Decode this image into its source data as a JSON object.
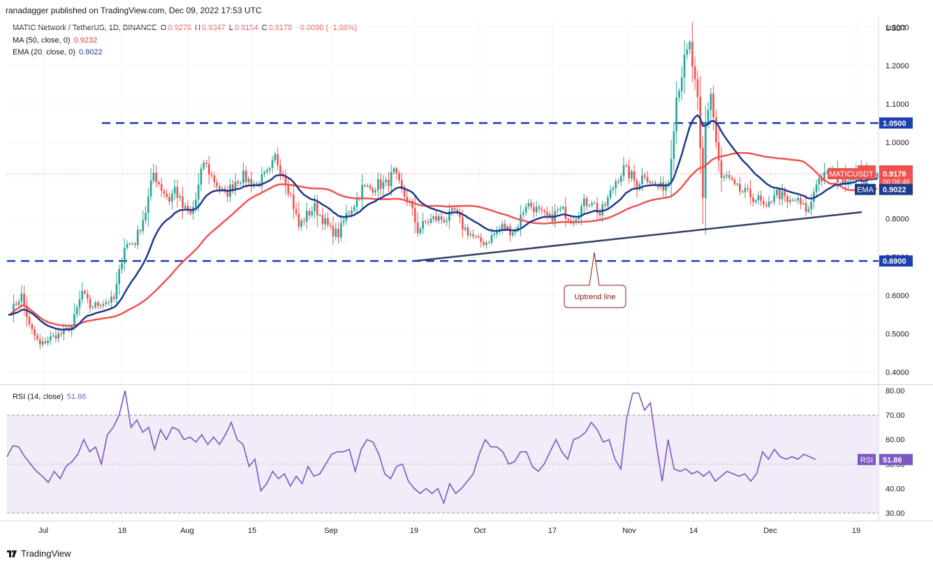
{
  "publisher_line": "ranadagger published on TradingView.com, Dec 09, 2022 17:53 UTC",
  "legend": {
    "symbol": "MATIC Network / TetherUS, 1D, BINANCE",
    "o_label": "O",
    "o": "0.9276",
    "h_label": "H",
    "h": "0.9347",
    "l_label": "L",
    "l": "0.9154",
    "c_label": "C",
    "c": "0.9178",
    "change": "−0.0098 (−1.06%)",
    "ma_label": "MA (50, close, 0)",
    "ma_value": "0.9232",
    "ema_label": "EMA (20, close, 0)",
    "ema_value": "0.9022",
    "rsi_label": "RSI (14, close)",
    "rsi_value": "51.86"
  },
  "footer": {
    "brand": "TradingView"
  },
  "colors": {
    "up": "#26a69a",
    "down": "#ef5350",
    "ma": "#ef5350",
    "ema": "#1e3a8a",
    "level": "#1e3fae",
    "trend": "#2f4066",
    "rsi": "#7e57c2",
    "rsi_band": "#ede7f6",
    "grid": "#f0f3fa",
    "annotation": "#8b1a1a"
  },
  "chart_data": [
    {
      "type": "candlestick",
      "title": "MATIC Network / TetherUS, 1D, BINANCE",
      "ylabel": "USDT",
      "ylim": [
        0.37,
        1.32
      ],
      "y_ticks": [
        "1.3000",
        "1.2000",
        "1.1000",
        "1.0000",
        "0.9000",
        "0.8000",
        "0.7000",
        "0.6000",
        "0.5000",
        "0.4000"
      ],
      "x_ticks": [
        "Jul",
        "18",
        "Aug",
        "15",
        "Sep",
        "19",
        "Oct",
        "17",
        "Nov",
        "14",
        "Dec",
        "19"
      ],
      "grid": true,
      "price_anchors": [
        [
          0,
          0.55
        ],
        [
          5,
          0.6
        ],
        [
          8,
          0.52
        ],
        [
          12,
          0.47
        ],
        [
          16,
          0.49
        ],
        [
          20,
          0.5
        ],
        [
          24,
          0.52
        ],
        [
          28,
          0.61
        ],
        [
          31,
          0.57
        ],
        [
          35,
          0.58
        ],
        [
          40,
          0.59
        ],
        [
          44,
          0.73
        ],
        [
          48,
          0.74
        ],
        [
          52,
          0.82
        ],
        [
          55,
          0.92
        ],
        [
          58,
          0.88
        ],
        [
          61,
          0.85
        ],
        [
          63,
          0.88
        ],
        [
          66,
          0.83
        ],
        [
          69,
          0.81
        ],
        [
          71,
          0.85
        ],
        [
          74,
          0.95
        ],
        [
          77,
          0.91
        ],
        [
          82,
          0.86
        ],
        [
          86,
          0.9
        ],
        [
          89,
          0.91
        ],
        [
          91,
          0.9
        ],
        [
          94,
          0.89
        ],
        [
          97,
          0.91
        ],
        [
          99,
          0.92
        ],
        [
          101,
          0.96
        ],
        [
          104,
          0.92
        ],
        [
          107,
          0.86
        ],
        [
          110,
          0.78
        ],
        [
          113,
          0.81
        ],
        [
          116,
          0.83
        ],
        [
          119,
          0.8
        ],
        [
          122,
          0.77
        ],
        [
          125,
          0.76
        ],
        [
          128,
          0.81
        ],
        [
          131,
          0.84
        ],
        [
          134,
          0.88
        ],
        [
          137,
          0.88
        ],
        [
          140,
          0.89
        ],
        [
          143,
          0.89
        ],
        [
          146,
          0.92
        ],
        [
          149,
          0.87
        ],
        [
          152,
          0.84
        ],
        [
          155,
          0.77
        ],
        [
          158,
          0.79
        ],
        [
          161,
          0.8
        ],
        [
          164,
          0.8
        ],
        [
          166,
          0.8
        ],
        [
          169,
          0.82
        ],
        [
          172,
          0.78
        ],
        [
          175,
          0.76
        ],
        [
          178,
          0.74
        ],
        [
          181,
          0.74
        ],
        [
          184,
          0.76
        ],
        [
          187,
          0.78
        ],
        [
          190,
          0.77
        ],
        [
          192,
          0.77
        ],
        [
          196,
          0.84
        ],
        [
          199,
          0.83
        ],
        [
          202,
          0.81
        ],
        [
          205,
          0.8
        ],
        [
          208,
          0.82
        ],
        [
          210,
          0.82
        ],
        [
          213,
          0.8
        ],
        [
          215,
          0.81
        ],
        [
          218,
          0.84
        ],
        [
          221,
          0.85
        ],
        [
          224,
          0.81
        ],
        [
          227,
          0.85
        ],
        [
          230,
          0.9
        ],
        [
          233,
          0.93
        ],
        [
          236,
          0.91
        ],
        [
          238,
          0.89
        ],
        [
          241,
          0.92
        ],
        [
          244,
          0.89
        ],
        [
          247,
          0.88
        ],
        [
          250,
          0.9
        ],
        [
          253,
          1.12
        ],
        [
          256,
          1.21
        ],
        [
          258,
          1.25
        ],
        [
          261,
          1.1
        ],
        [
          263,
          0.85
        ],
        [
          264,
          1.05
        ],
        [
          266,
          1.13
        ],
        [
          268,
          1.0
        ],
        [
          270,
          0.9
        ],
        [
          272,
          0.91
        ],
        [
          275,
          0.88
        ],
        [
          278,
          0.87
        ],
        [
          281,
          0.86
        ],
        [
          284,
          0.85
        ],
        [
          287,
          0.82
        ],
        [
          290,
          0.87
        ],
        [
          293,
          0.86
        ],
        [
          295,
          0.84
        ],
        [
          298,
          0.85
        ],
        [
          301,
          0.83
        ],
        [
          303,
          0.82
        ],
        [
          306,
          0.9
        ],
        [
          309,
          0.91
        ],
        [
          312,
          0.92
        ],
        [
          315,
          0.9
        ],
        [
          318,
          0.91
        ],
        [
          321,
          0.92
        ],
        [
          324,
          0.9
        ],
        [
          327,
          0.92
        ],
        [
          329,
          0.918
        ]
      ],
      "levels": [
        {
          "label": "1.0500",
          "value": 1.05
        },
        {
          "label": "0.6900",
          "value": 0.69
        }
      ],
      "current_price_label": "MATICUSDT",
      "current_price": "0.9178",
      "countdown": "06:06:46",
      "ma_label": "MA",
      "ema_label": "EMA",
      "trendline": {
        "from": [
          154,
          0.69
        ],
        "to": [
          300,
          0.8
        ]
      },
      "annotation": "Uptrend line"
    },
    {
      "type": "line",
      "title": "RSI (14, close)",
      "ylim": [
        27,
        82
      ],
      "y_ticks": [
        "80.00",
        "70.00",
        "60.00",
        "50.00",
        "40.00",
        "30.00"
      ],
      "band": [
        30,
        70
      ],
      "midline": 50,
      "series": [
        {
          "name": "RSI (14, close)",
          "last": "51.86",
          "values": [
            [
              0,
              53
            ],
            [
              2,
              57.5
            ],
            [
              4,
              57
            ],
            [
              6,
              53
            ],
            [
              8,
              50
            ],
            [
              10,
              47
            ],
            [
              12,
              45
            ],
            [
              14,
              42.5
            ],
            [
              16,
              47
            ],
            [
              18,
              44
            ],
            [
              20,
              49
            ],
            [
              22,
              51
            ],
            [
              24,
              54
            ],
            [
              26,
              60
            ],
            [
              28,
              55
            ],
            [
              30,
              57
            ],
            [
              32,
              50
            ],
            [
              34,
              62
            ],
            [
              36,
              65
            ],
            [
              38,
              70
            ],
            [
              40,
              80
            ],
            [
              42,
              65
            ],
            [
              44,
              68
            ],
            [
              46,
              63
            ],
            [
              48,
              65
            ],
            [
              50,
              56
            ],
            [
              52,
              64
            ],
            [
              54,
              60
            ],
            [
              56,
              65
            ],
            [
              58,
              64
            ],
            [
              60,
              60
            ],
            [
              62,
              61
            ],
            [
              64,
              59
            ],
            [
              66,
              62
            ],
            [
              68,
              58
            ],
            [
              70,
              61
            ],
            [
              72,
              58
            ],
            [
              74,
              62
            ],
            [
              76,
              67
            ],
            [
              78,
              60
            ],
            [
              80,
              58
            ],
            [
              82,
              49
            ],
            [
              84,
              52
            ],
            [
              86,
              39
            ],
            [
              88,
              42
            ],
            [
              90,
              47
            ],
            [
              92,
              44
            ],
            [
              94,
              46
            ],
            [
              96,
              41
            ],
            [
              98,
              45
            ],
            [
              100,
              42
            ],
            [
              102,
              49
            ],
            [
              104,
              45
            ],
            [
              106,
              46
            ],
            [
              108,
              50
            ],
            [
              110,
              54
            ],
            [
              112,
              55
            ],
            [
              114,
              55
            ],
            [
              116,
              56
            ],
            [
              118,
              47
            ],
            [
              120,
              56
            ],
            [
              122,
              60
            ],
            [
              124,
              59
            ],
            [
              126,
              54
            ],
            [
              128,
              46
            ],
            [
              130,
              44
            ],
            [
              132,
              49
            ],
            [
              134,
              50
            ],
            [
              136,
              43
            ],
            [
              138,
              40
            ],
            [
              140,
              38
            ],
            [
              142,
              40
            ],
            [
              144,
              38
            ],
            [
              146,
              40
            ],
            [
              148,
              34
            ],
            [
              150,
              42
            ],
            [
              152,
              38
            ],
            [
              154,
              40
            ],
            [
              156,
              43
            ],
            [
              158,
              46
            ],
            [
              160,
              54
            ],
            [
              162,
              60
            ],
            [
              164,
              57
            ],
            [
              166,
              57
            ],
            [
              168,
              55
            ],
            [
              170,
              50
            ],
            [
              172,
              51
            ],
            [
              174,
              55
            ],
            [
              176,
              55
            ],
            [
              178,
              49
            ],
            [
              180,
              47
            ],
            [
              182,
              50
            ],
            [
              184,
              55
            ],
            [
              186,
              60
            ],
            [
              188,
              55
            ],
            [
              190,
              52
            ],
            [
              192,
              60
            ],
            [
              194,
              61
            ],
            [
              196,
              63
            ],
            [
              198,
              67
            ],
            [
              200,
              64
            ],
            [
              202,
              59
            ],
            [
              204,
              60
            ],
            [
              206,
              52
            ],
            [
              208,
              48
            ],
            [
              210,
              69
            ],
            [
              212,
              79
            ],
            [
              214,
              79
            ],
            [
              216,
              72
            ],
            [
              218,
              75
            ],
            [
              220,
              58
            ],
            [
              222,
              43
            ],
            [
              224,
              60
            ],
            [
              226,
              48
            ],
            [
              228,
              47
            ],
            [
              230,
              48
            ],
            [
              232,
              46
            ],
            [
              234,
              47
            ],
            [
              236,
              45
            ],
            [
              238,
              47
            ],
            [
              240,
              43
            ],
            [
              242,
              45
            ],
            [
              244,
              47
            ],
            [
              246,
              46
            ],
            [
              248,
              45
            ],
            [
              250,
              46
            ],
            [
              252,
              43
            ],
            [
              254,
              46
            ],
            [
              256,
              55
            ],
            [
              258,
              52
            ],
            [
              260,
              56
            ],
            [
              262,
              53
            ],
            [
              264,
              52
            ],
            [
              266,
              53
            ],
            [
              268,
              52
            ],
            [
              270,
              54
            ],
            [
              272,
              53
            ],
            [
              274,
              51.86
            ]
          ]
        }
      ]
    }
  ]
}
